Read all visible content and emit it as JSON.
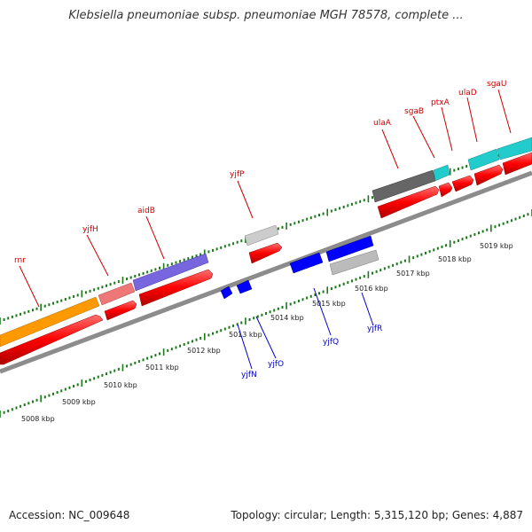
{
  "title": "Klebsiella pneumoniae subsp. pneumoniae MGH 78578, complete ...",
  "footer": {
    "accession": "Accession: NC_009648",
    "topology": "Topology: circular; Length: 5,315,120 bp; Genes: 4,887"
  },
  "colors": {
    "backbone": "#8c8c8c",
    "tick": "#1a7a1a",
    "cds": "#ff0000",
    "label_top": "#cc0000",
    "label_bottom": "#0000cc",
    "minus_strand": "#0000ff"
  },
  "scale_labels": [
    "5008 kbp",
    "5009 kbp",
    "5010 kbp",
    "5011 kbp",
    "5012 kbp",
    "5013 kbp",
    "5014 kbp",
    "5015 kbp",
    "5016 kbp",
    "5017 kbp",
    "5018 kbp",
    "5019 kbp"
  ],
  "top_labels": [
    "rnr",
    "yjfH",
    "aidB",
    "yjfP",
    "ulaA",
    "sgaB",
    "ptxA",
    "ulaD",
    "sgaU"
  ],
  "bottom_labels": [
    "yjfN",
    "yjfO",
    "yjfQ",
    "yjfR"
  ]
}
